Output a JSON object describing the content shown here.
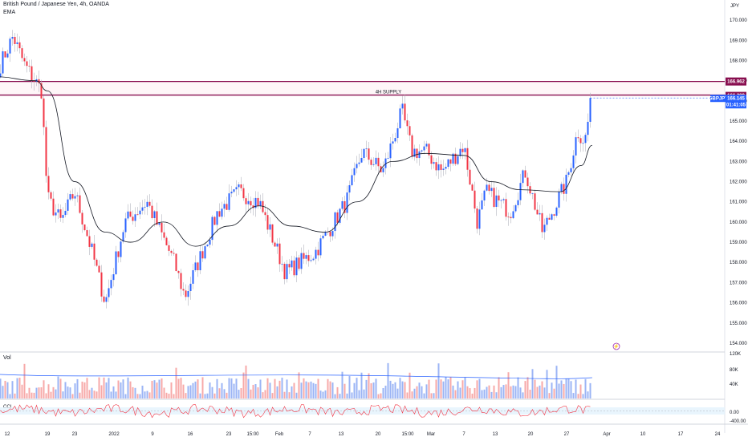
{
  "header": {
    "title": "British Pound / Japanese Yen, 4h, OANDA",
    "indicator": "EMA"
  },
  "colors": {
    "up": "#2962ff",
    "down": "#f23645",
    "ema": "#131722",
    "supply_line": "#880e4f",
    "supply_fill": "#fce4ec",
    "price_tag": "#2962ff",
    "vol_up": "#9bb4f5",
    "vol_down": "#f7a9a8",
    "cci_line": "#f23645",
    "cci_band": "#e3f2fd"
  },
  "chart_data": [
    {
      "type": "candlestick",
      "title": "British Pound / Japanese Yen, 4h, OANDA",
      "currency_label": "JPY",
      "symbol": "GBPJPY",
      "ylim": [
        153.6,
        171.0
      ],
      "y_ticks": [
        154.0,
        155.0,
        156.0,
        157.0,
        158.0,
        159.0,
        160.0,
        161.0,
        162.0,
        163.0,
        164.0,
        165.0,
        166.0,
        167.0,
        168.0,
        169.0,
        170.0
      ],
      "x_ticks": [
        "12",
        "19",
        "23",
        "2022",
        "9",
        "16",
        "23",
        "15:00",
        "Feb",
        "7",
        "13",
        "20",
        "15:00",
        "Mar",
        "7",
        "13",
        "20",
        "27",
        "Apr",
        "10",
        "17",
        "24"
      ],
      "ema_label": "EMA",
      "supply_zone": {
        "label": "4H SUPPLY",
        "top": 166.962,
        "bottom": 166.289,
        "top_label": "166.962",
        "bottom_label": "166.289"
      },
      "last_price": {
        "label": "166.145",
        "countdown": "01:41:05",
        "value": 166.145
      },
      "key_points": [
        {
          "date": "Dec 10",
          "price": 167.3
        },
        {
          "date": "Dec 13",
          "price": 169.2
        },
        {
          "date": "Dec 15",
          "price": 167.8
        },
        {
          "date": "Dec 18",
          "price": 166.5
        },
        {
          "date": "Dec 19",
          "price": 161.2
        },
        {
          "date": "Dec 21",
          "price": 160.0
        },
        {
          "date": "Dec 23",
          "price": 161.5
        },
        {
          "date": "Dec 27",
          "price": 158.5
        },
        {
          "date": "Dec 30",
          "price": 156.0
        },
        {
          "date": "Jan 3",
          "price": 160.0
        },
        {
          "date": "Jan 7",
          "price": 161.0
        },
        {
          "date": "Jan 12",
          "price": 158.0
        },
        {
          "date": "Jan 14",
          "price": 156.3
        },
        {
          "date": "Jan 20",
          "price": 160.5
        },
        {
          "date": "Jan 24",
          "price": 161.5
        },
        {
          "date": "Jan 28",
          "price": 161.0
        },
        {
          "date": "Feb 2",
          "price": 157.5
        },
        {
          "date": "Feb 7",
          "price": 158.5
        },
        {
          "date": "Feb 13",
          "price": 161.0
        },
        {
          "date": "Feb 16",
          "price": 163.5
        },
        {
          "date": "Feb 20",
          "price": 162.5
        },
        {
          "date": "Feb 24",
          "price": 165.5
        },
        {
          "date": "Feb 26",
          "price": 163.5
        },
        {
          "date": "Mar 1",
          "price": 163.5
        },
        {
          "date": "Mar 4",
          "price": 162.5
        },
        {
          "date": "Mar 8",
          "price": 163.8
        },
        {
          "date": "Mar 11",
          "price": 160.0
        },
        {
          "date": "Mar 13",
          "price": 161.5
        },
        {
          "date": "Mar 18",
          "price": 160.5
        },
        {
          "date": "Mar 21",
          "price": 162.5
        },
        {
          "date": "Mar 24",
          "price": 159.5
        },
        {
          "date": "Mar 28",
          "price": 162.0
        },
        {
          "date": "Mar 31",
          "price": 164.5
        },
        {
          "date": "Apr 2",
          "price": 164.0
        },
        {
          "date": "Apr 4",
          "price": 166.2
        }
      ],
      "ema_points": [
        {
          "date": "Dec 10",
          "price": 167.2
        },
        {
          "date": "Dec 17",
          "price": 167.0
        },
        {
          "date": "Dec 19",
          "price": 166.5
        },
        {
          "date": "Dec 23",
          "price": 162.0
        },
        {
          "date": "Dec 30",
          "price": 159.5
        },
        {
          "date": "Jan 4",
          "price": 159.0
        },
        {
          "date": "Jan 10",
          "price": 160.0
        },
        {
          "date": "Jan 16",
          "price": 158.8
        },
        {
          "date": "Jan 22",
          "price": 159.8
        },
        {
          "date": "Jan 28",
          "price": 160.8
        },
        {
          "date": "Feb 3",
          "price": 159.8
        },
        {
          "date": "Feb 9",
          "price": 159.5
        },
        {
          "date": "Feb 15",
          "price": 161.0
        },
        {
          "date": "Feb 22",
          "price": 163.0
        },
        {
          "date": "Mar 1",
          "price": 163.4
        },
        {
          "date": "Mar 8",
          "price": 163.3
        },
        {
          "date": "Mar 14",
          "price": 162.0
        },
        {
          "date": "Mar 20",
          "price": 161.6
        },
        {
          "date": "Mar 27",
          "price": 161.5
        },
        {
          "date": "Apr 1",
          "price": 162.8
        },
        {
          "date": "Apr 4",
          "price": 163.8
        }
      ]
    },
    {
      "type": "bar",
      "title": "Vol",
      "y_ticks": [
        "80K",
        "40K"
      ],
      "y_values": [
        80000,
        40000
      ],
      "top_tick": "120K"
    },
    {
      "type": "line",
      "title": "CCI",
      "y_ticks": [
        "0.00",
        "-400.00"
      ],
      "band": [
        -100,
        100
      ]
    }
  ]
}
